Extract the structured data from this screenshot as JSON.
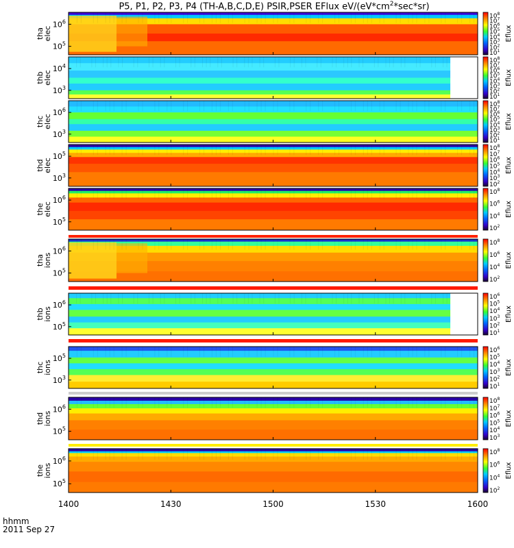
{
  "title": {
    "prefix": "P5, P1, P2, P3, P4 (TH-A,B,C,D,E) PSIR,PSER EFlux eV/(eV*cm",
    "sup": "2",
    "suffix": "*sec*sr)"
  },
  "x_axis": {
    "label_line1": "hhmm",
    "label_line2": "2011 Sep 27"
  },
  "chart_data": {
    "type": "heatmap",
    "title": "P5, P1, P2, P3, P4 (TH-A,B,C,D,E) PSIR,PSER EFlux eV/(eV*cm2*sec*sr)",
    "x_ticks": [
      "1400",
      "1430",
      "1500",
      "1530",
      "1600"
    ],
    "x_range_hhmm": [
      "1400",
      "1600"
    ],
    "colorbar_label": "Eflux",
    "panels": [
      {
        "name": "tha elec",
        "ylabel": [
          "tha",
          "elec"
        ],
        "yticks": [
          "10^6",
          "10^5"
        ],
        "cbar_ticks": [
          "10^8",
          "10^7",
          "10^6",
          "10^5",
          "10^4",
          "10^3",
          "10^2",
          "10^1"
        ],
        "data_end_hhmm": "1600"
      },
      {
        "name": "thb elec",
        "ylabel": [
          "thb",
          "elec"
        ],
        "yticks": [
          "10^4",
          "10^3"
        ],
        "cbar_ticks": [
          "10^8",
          "10^7",
          "10^6",
          "10^5",
          "10^4",
          "10^3",
          "10^2",
          "10^1"
        ],
        "data_end_hhmm": "1552"
      },
      {
        "name": "thc elec",
        "ylabel": [
          "thc",
          "elec"
        ],
        "yticks": [
          "10^6",
          "10^3"
        ],
        "cbar_ticks": [
          "10^8",
          "10^7",
          "10^6",
          "10^5",
          "10^4",
          "10^3",
          "10^2",
          "10^1"
        ],
        "data_end_hhmm": "1600"
      },
      {
        "name": "thd elec",
        "ylabel": [
          "thd",
          "elec"
        ],
        "yticks": [
          "10^5",
          "10^3"
        ],
        "cbar_ticks": [
          "10^8",
          "10^7",
          "10^6",
          "10^5",
          "10^4",
          "10^3",
          "10^2"
        ],
        "data_end_hhmm": "1600"
      },
      {
        "name": "the elec",
        "ylabel": [
          "the",
          "elec"
        ],
        "yticks": [
          "10^6",
          "10^5"
        ],
        "cbar_ticks": [
          "10^8",
          "10^6",
          "10^4",
          "10^2"
        ],
        "data_end_hhmm": "1600"
      },
      {
        "name": "tha ions",
        "ylabel": [
          "tha",
          "ions"
        ],
        "yticks": [
          "10^6",
          "10^5"
        ],
        "cbar_ticks": [
          "10^8",
          "10^6",
          "10^4",
          "10^2"
        ],
        "data_end_hhmm": "1600"
      },
      {
        "name": "thb ions",
        "ylabel": [
          "thb",
          "ions"
        ],
        "yticks": [
          "10^6",
          "10^5"
        ],
        "cbar_ticks": [
          "10^6",
          "10^5",
          "10^4",
          "10^3",
          "10^2",
          "10^1"
        ],
        "data_end_hhmm": "1552"
      },
      {
        "name": "thc ions",
        "ylabel": [
          "thc",
          "ions"
        ],
        "yticks": [
          "10^5",
          "10^3"
        ],
        "cbar_ticks": [
          "10^6",
          "10^5",
          "10^4",
          "10^3",
          "10^2",
          "10^1"
        ],
        "data_end_hhmm": "1600"
      },
      {
        "name": "thd ions",
        "ylabel": [
          "thd",
          "ions"
        ],
        "yticks": [
          "10^6",
          "10^5"
        ],
        "cbar_ticks": [
          "10^8",
          "10^7",
          "10^6",
          "10^5",
          "10^4",
          "10^3"
        ],
        "data_end_hhmm": "1600"
      },
      {
        "name": "the ions",
        "ylabel": [
          "the",
          "ions"
        ],
        "yticks": [
          "10^6",
          "10^5"
        ],
        "cbar_ticks": [
          "10^8",
          "10^6",
          "10^4",
          "10^2"
        ],
        "data_end_hhmm": "1600"
      }
    ]
  }
}
